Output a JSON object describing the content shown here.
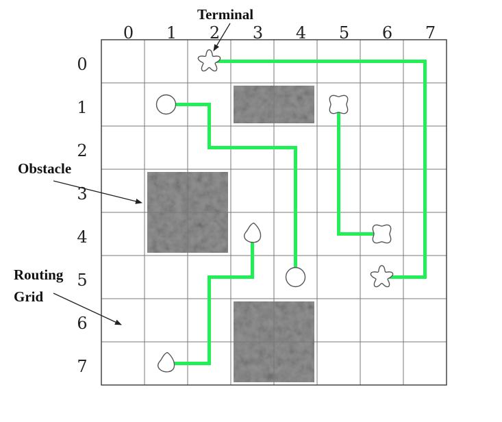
{
  "labels": {
    "terminal": "Terminal",
    "obstacle": "Obstacle",
    "routing_line1": "Routing",
    "routing_line2": "Grid"
  },
  "columns": [
    "0",
    "1",
    "2",
    "3",
    "4",
    "5",
    "6",
    "7"
  ],
  "rows": [
    "0",
    "1",
    "2",
    "3",
    "4",
    "5",
    "6",
    "7"
  ],
  "grid": {
    "cols": 8,
    "rows": 8
  },
  "colors": {
    "route": "#22ee55",
    "obstacle": "#8f8f8f",
    "grid": "#777777"
  },
  "obstacles": [
    {
      "col": 3,
      "row": 1,
      "w": 2,
      "h": 1
    },
    {
      "col": 1,
      "row": 3,
      "w": 2,
      "h": 2
    },
    {
      "col": 3,
      "row": 6,
      "w": 2,
      "h": 2
    }
  ],
  "terminals": [
    {
      "col": 2,
      "row": 0,
      "shape": "star-icon"
    },
    {
      "col": 1,
      "row": 1,
      "shape": "circle-icon"
    },
    {
      "col": 5,
      "row": 1,
      "shape": "blob-icon"
    },
    {
      "col": 3,
      "row": 4,
      "shape": "drop-icon"
    },
    {
      "col": 6,
      "row": 4,
      "shape": "blob-icon"
    },
    {
      "col": 4,
      "row": 5,
      "shape": "circle-icon"
    },
    {
      "col": 6,
      "row": 5,
      "shape": "star-icon"
    },
    {
      "col": 1,
      "row": 7,
      "shape": "drop-icon"
    }
  ],
  "routes": [
    [
      [
        2,
        0
      ],
      [
        7,
        0
      ],
      [
        7,
        5
      ],
      [
        6,
        5
      ]
    ],
    [
      [
        1,
        1
      ],
      [
        2,
        1
      ],
      [
        2,
        2
      ],
      [
        4,
        2
      ],
      [
        4,
        5
      ]
    ],
    [
      [
        5,
        1
      ],
      [
        5,
        4
      ],
      [
        6,
        4
      ]
    ],
    [
      [
        3,
        4
      ],
      [
        3,
        5
      ],
      [
        2,
        5
      ],
      [
        2,
        7
      ],
      [
        1,
        7
      ]
    ]
  ]
}
